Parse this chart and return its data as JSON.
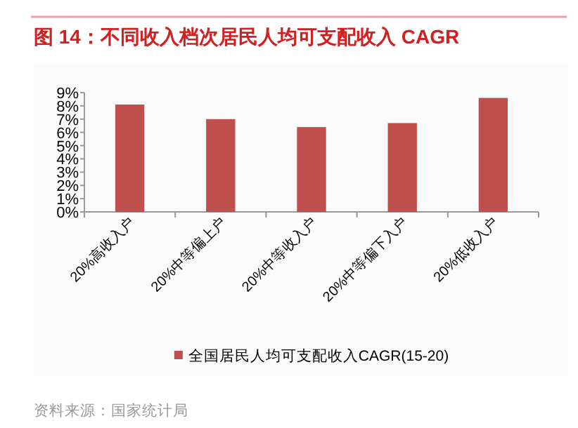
{
  "chart_data": {
    "type": "bar",
    "title": "图 14：不同收入档次居民人均可支配收入 CAGR",
    "categories": [
      "20%高收入户",
      "20%中等偏上户",
      "20%中等收入户",
      "20%中等偏下入户",
      "20%低收入户"
    ],
    "series": [
      {
        "name": "全国居民人均可支配收入CAGR(15-20)",
        "color": "#c0504d",
        "values": [
          8.1,
          7.0,
          6.4,
          6.7,
          8.6
        ]
      }
    ],
    "ylim": [
      0,
      9
    ],
    "yticks": [
      {
        "value": 0,
        "label": "0%"
      },
      {
        "value": 1,
        "label": "1%"
      },
      {
        "value": 2,
        "label": "2%"
      },
      {
        "value": 3,
        "label": "3%"
      },
      {
        "value": 4,
        "label": "4%"
      },
      {
        "value": 5,
        "label": "5%"
      },
      {
        "value": 6,
        "label": "6%"
      },
      {
        "value": 7,
        "label": "7%"
      },
      {
        "value": 8,
        "label": "8%"
      },
      {
        "value": 9,
        "label": "9%"
      }
    ],
    "legend": "bottom",
    "grid": false,
    "annotations": [
      "资料来源：国家统计局"
    ]
  }
}
